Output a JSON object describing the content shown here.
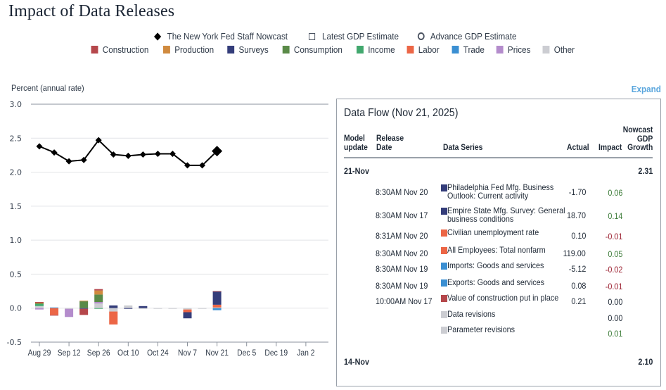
{
  "page": {
    "title": "Impact of Data Releases",
    "expand_label": "Expand"
  },
  "legend": {
    "markers": [
      {
        "label": "The New York Fed Staff Nowcast",
        "symbol": "diamond-icon"
      },
      {
        "label": "Latest GDP Estimate",
        "symbol": "square-outline-icon"
      },
      {
        "label": "Advance GDP Estimate",
        "symbol": "circle-outline-icon"
      }
    ],
    "categories": [
      {
        "label": "Construction",
        "color": "#b5474b"
      },
      {
        "label": "Production",
        "color": "#d08a3e"
      },
      {
        "label": "Surveys",
        "color": "#343d7a"
      },
      {
        "label": "Consumption",
        "color": "#5a8a48"
      },
      {
        "label": "Income",
        "color": "#42a86e"
      },
      {
        "label": "Labor",
        "color": "#ec6646"
      },
      {
        "label": "Trade",
        "color": "#3b8fd2"
      },
      {
        "label": "Prices",
        "color": "#b48ccc"
      },
      {
        "label": "Other",
        "color": "#cccdd2"
      }
    ]
  },
  "chart_data": {
    "type": "bar",
    "title": "Impact of Data Releases",
    "xlabel": "",
    "ylabel": "Percent (annual rate)",
    "ylim": [
      -0.5,
      3.0
    ],
    "yticks": [
      "3.0",
      "2.5",
      "2.0",
      "1.5",
      "1.0",
      "0.5",
      "0.0",
      "-0.5"
    ],
    "ytick_values": [
      3.0,
      2.5,
      2.0,
      1.5,
      1.0,
      0.5,
      0.0,
      -0.5
    ],
    "grid": true,
    "legend_position": "top-center",
    "x_tick_labels": [
      "Aug 29",
      "Sep 12",
      "Sep 26",
      "Oct 10",
      "Oct 24",
      "Nov 7",
      "Nov 21",
      "Dec 5",
      "Dec 19",
      "Jan 2"
    ],
    "x_tick_week_index": [
      0,
      2,
      4,
      6,
      8,
      10,
      12,
      14,
      16,
      18
    ],
    "week_count": 19,
    "weeks": [
      "Aug 29",
      "Sep 5",
      "Sep 12",
      "Sep 19",
      "Sep 26",
      "Oct 3",
      "Oct 10",
      "Oct 17",
      "Oct 24",
      "Oct 31",
      "Nov 7",
      "Nov 14",
      "Nov 21"
    ],
    "nowcast_line": {
      "name": "The New York Fed Staff Nowcast",
      "values": [
        2.38,
        2.29,
        2.16,
        2.18,
        2.47,
        2.26,
        2.24,
        2.26,
        2.27,
        2.27,
        2.1,
        2.1,
        2.31
      ],
      "latest_highlighted": true
    },
    "stacked_bars": [
      {
        "week": "Aug 29",
        "segments": [
          {
            "category": "Other",
            "value": 0.03
          },
          {
            "category": "Income",
            "value": 0.03
          },
          {
            "category": "Consumption",
            "value": 0.01
          },
          {
            "category": "Production",
            "value": 0.01
          },
          {
            "category": "Construction",
            "value": 0.01
          },
          {
            "category": "Prices",
            "value": -0.02
          }
        ]
      },
      {
        "week": "Sep 5",
        "segments": [
          {
            "category": "Trade",
            "value": 0.01
          },
          {
            "category": "Labor",
            "value": -0.1
          },
          {
            "category": "Construction",
            "value": -0.01
          }
        ]
      },
      {
        "week": "Sep 12",
        "segments": [
          {
            "category": "Other",
            "value": -0.01
          },
          {
            "category": "Prices",
            "value": -0.12
          }
        ]
      },
      {
        "week": "Sep 19",
        "segments": [
          {
            "category": "Consumption",
            "value": 0.1
          },
          {
            "category": "Production",
            "value": 0.01
          },
          {
            "category": "Surveys",
            "value": -0.01
          },
          {
            "category": "Construction",
            "value": -0.09
          }
        ]
      },
      {
        "week": "Sep 26",
        "segments": [
          {
            "category": "Other",
            "value": 0.07
          },
          {
            "category": "Prices",
            "value": 0.02
          },
          {
            "category": "Consumption",
            "value": 0.11
          },
          {
            "category": "Production",
            "value": 0.06
          },
          {
            "category": "Construction",
            "value": 0.02
          },
          {
            "category": "Income",
            "value": -0.01
          }
        ]
      },
      {
        "week": "Oct 3",
        "segments": [
          {
            "category": "Surveys",
            "value": 0.04
          },
          {
            "category": "Other",
            "value": -0.05
          },
          {
            "category": "Labor",
            "value": -0.19
          }
        ]
      },
      {
        "week": "Oct 10",
        "segments": [
          {
            "category": "Other",
            "value": 0.04
          },
          {
            "category": "Surveys",
            "value": -0.01
          }
        ]
      },
      {
        "week": "Oct 17",
        "segments": [
          {
            "category": "Surveys",
            "value": 0.03
          },
          {
            "category": "Other",
            "value": -0.01
          }
        ]
      },
      {
        "week": "Oct 24",
        "segments": [
          {
            "category": "Other",
            "value": -0.005
          }
        ]
      },
      {
        "week": "Oct 31",
        "segments": [
          {
            "category": "Other",
            "value": -0.005
          }
        ]
      },
      {
        "week": "Nov 7",
        "segments": [
          {
            "category": "Other",
            "value": -0.02
          },
          {
            "category": "Labor",
            "value": -0.04
          },
          {
            "category": "Surveys",
            "value": -0.09
          }
        ]
      },
      {
        "week": "Nov 14",
        "segments": [
          {
            "category": "Other",
            "value": -0.005
          }
        ]
      },
      {
        "week": "Nov 21",
        "segments": [
          {
            "category": "Other",
            "value": 0.01
          },
          {
            "category": "Labor",
            "value": 0.04
          },
          {
            "category": "Surveys",
            "value": 0.2
          },
          {
            "category": "Trade",
            "value": -0.03
          },
          {
            "category": "Construction",
            "value": 0.0
          }
        ]
      }
    ]
  },
  "data_flow": {
    "title": "Data Flow (Nov 21, 2025)",
    "headers": {
      "model_update": "Model\nupdate",
      "release_date": "Release\nDate",
      "data_series": "Data Series",
      "actual": "Actual",
      "impact": "Impact",
      "nowcast": "Nowcast\nGDP\nGrowth"
    },
    "groups": [
      {
        "update": "21-Nov",
        "nowcast": "2.31",
        "rows": [
          {
            "release": "8:30AM Nov 20",
            "series": "Philadelphia Fed Mfg. Business Outlook: Current activity",
            "category": "Surveys",
            "color": "#343d7a",
            "actual": "-1.70",
            "impact": "0.06",
            "sign": "pos"
          },
          {
            "release": "8:30AM Nov 17",
            "series": "Empire State Mfg. Survey: General business conditions",
            "category": "Surveys",
            "color": "#343d7a",
            "actual": "18.70",
            "impact": "0.14",
            "sign": "pos"
          },
          {
            "release": "8:31AM Nov 20",
            "series": "Civilian unemployment rate",
            "category": "Labor",
            "color": "#ec6646",
            "actual": "0.10",
            "impact": "-0.01",
            "sign": "neg"
          },
          {
            "release": "8:30AM Nov 20",
            "series": "All Employees: Total nonfarm",
            "category": "Labor",
            "color": "#ec6646",
            "actual": "119.00",
            "impact": "0.05",
            "sign": "pos"
          },
          {
            "release": "8:30AM Nov 19",
            "series": "Imports: Goods and services",
            "category": "Trade",
            "color": "#3b8fd2",
            "actual": "-5.12",
            "impact": "-0.02",
            "sign": "neg"
          },
          {
            "release": "8:30AM Nov 19",
            "series": "Exports: Goods and services",
            "category": "Trade",
            "color": "#3b8fd2",
            "actual": "0.08",
            "impact": "-0.01",
            "sign": "neg"
          },
          {
            "release": "10:00AM Nov 17",
            "series": "Value of construction put in place",
            "category": "Construction",
            "color": "#b5474b",
            "actual": "0.21",
            "impact": "0.00",
            "sign": "zero"
          },
          {
            "release": "",
            "series": "Data revisions",
            "category": "Other",
            "color": "#cccdd2",
            "actual": "",
            "impact": "0.00",
            "sign": "zero"
          },
          {
            "release": "",
            "series": "Parameter revisions",
            "category": "Other",
            "color": "#cccdd2",
            "actual": "",
            "impact": "0.01",
            "sign": "pos"
          }
        ]
      },
      {
        "update": "14-Nov",
        "nowcast": "2.10",
        "rows": []
      }
    ]
  }
}
